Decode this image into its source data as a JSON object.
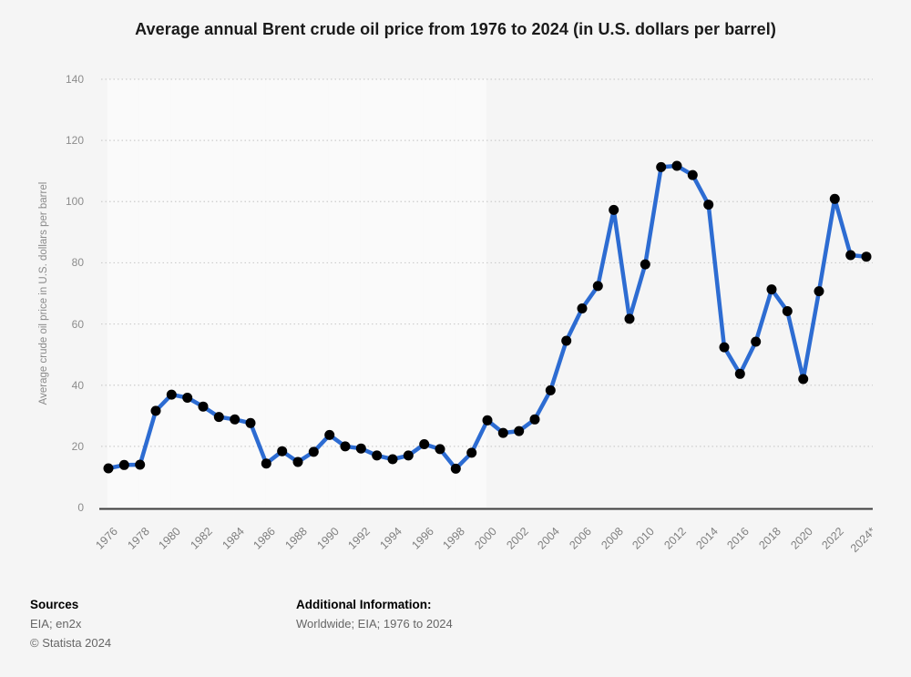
{
  "title": "Average annual Brent crude oil price from 1976 to 2024 (in U.S. dollars per barrel)",
  "chart_data": {
    "type": "line",
    "title": "Average annual Brent crude oil price from 1976 to 2024 (in U.S. dollars per barrel)",
    "xlabel": "",
    "ylabel": "Average crude oil price in U.S. dollars per barrel",
    "ylim": [
      0,
      140
    ],
    "y_ticks": [
      0,
      20,
      40,
      60,
      80,
      100,
      120,
      140
    ],
    "x_tick_every": 2,
    "grid": "horizontal dotted lines, alternating vertical background bands",
    "legend_position": "none",
    "line_color": "#2d6cd2",
    "point_color": "#2d6cd2",
    "categories": [
      "1976",
      "1977",
      "1978",
      "1979",
      "1980",
      "1981",
      "1982",
      "1983",
      "1984",
      "1985",
      "1986",
      "1987",
      "1988",
      "1989",
      "1990",
      "1991",
      "1992",
      "1993",
      "1994",
      "1995",
      "1996",
      "1997",
      "1998",
      "1999",
      "2000",
      "2001",
      "2002",
      "2003",
      "2004",
      "2005",
      "2006",
      "2007",
      "2008",
      "2009",
      "2010",
      "2011",
      "2012",
      "2013",
      "2014",
      "2015",
      "2016",
      "2017",
      "2018",
      "2019",
      "2020",
      "2021",
      "2022",
      "2023",
      "2024*"
    ],
    "values": [
      12.8,
      13.9,
      14.0,
      31.6,
      36.9,
      35.9,
      33.0,
      29.6,
      28.8,
      27.6,
      14.4,
      18.4,
      14.9,
      18.2,
      23.7,
      20.0,
      19.3,
      17.0,
      15.8,
      17.0,
      20.7,
      19.1,
      12.7,
      17.9,
      28.5,
      24.4,
      25.0,
      28.8,
      38.3,
      54.5,
      65.1,
      72.4,
      97.3,
      61.7,
      79.5,
      111.3,
      111.7,
      108.7,
      99.0,
      52.4,
      43.7,
      54.2,
      71.3,
      64.2,
      42.0,
      70.7,
      100.9,
      82.5,
      82.0
    ]
  },
  "footer": {
    "sources_label": "Sources",
    "sources_line1": "EIA; en2x",
    "sources_line2": "© Statista 2024",
    "additional_label": "Additional Information:",
    "additional_line1": "Worldwide; EIA; 1976 to 2024"
  },
  "colors": {
    "background": "#f5f5f5",
    "band_light": "#fafafa",
    "gridline": "#cdcdcd",
    "axis": "#3d3d3d",
    "line": "#2d6cd2"
  }
}
